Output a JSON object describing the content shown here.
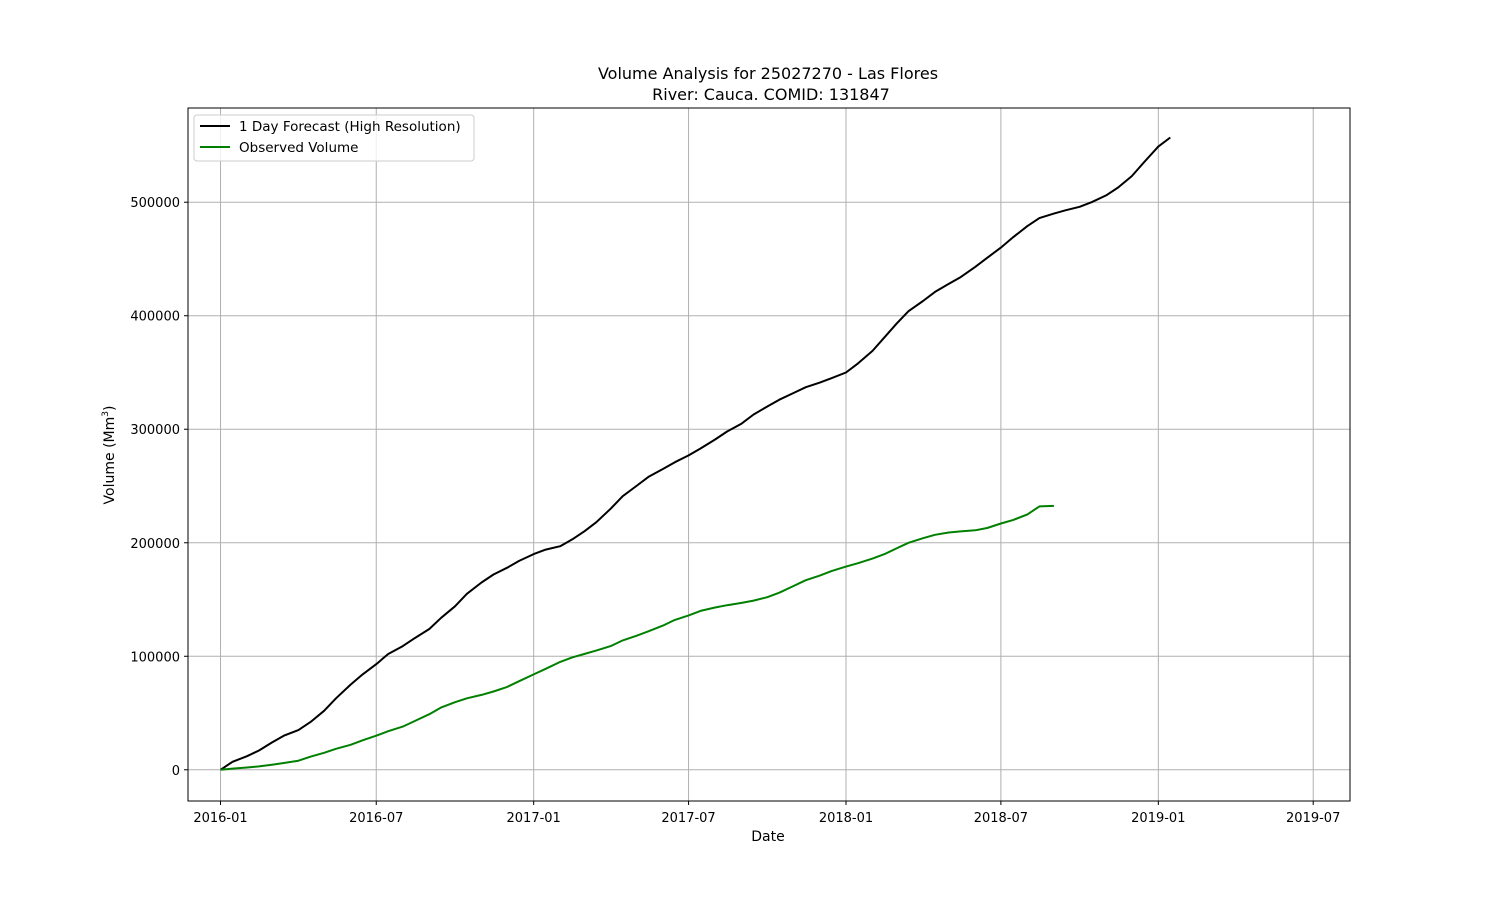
{
  "chart_data": {
    "type": "line",
    "title": "Volume Analysis for 25027270 - Las Flores",
    "subtitle": "River: Cauca. COMID: 131847",
    "xlabel": "Date",
    "ylabel": "Volume (Mm",
    "ylabel_sup": "3",
    "ylabel_suffix": ")",
    "xlim": [
      "2015-11-24",
      "2019-08-13"
    ],
    "ylim": [
      -27500,
      583000
    ],
    "x_ticks": [
      {
        "date": "2016-01-01",
        "label": "2016-01"
      },
      {
        "date": "2016-07-01",
        "label": "2016-07"
      },
      {
        "date": "2017-01-01",
        "label": "2017-01"
      },
      {
        "date": "2017-07-01",
        "label": "2017-07"
      },
      {
        "date": "2018-01-01",
        "label": "2018-01"
      },
      {
        "date": "2018-07-01",
        "label": "2018-07"
      },
      {
        "date": "2019-01-01",
        "label": "2019-01"
      },
      {
        "date": "2019-07-01",
        "label": "2019-07"
      }
    ],
    "y_ticks": [
      {
        "value": 0,
        "label": "0"
      },
      {
        "value": 100000,
        "label": "100000"
      },
      {
        "value": 200000,
        "label": "200000"
      },
      {
        "value": 300000,
        "label": "300000"
      },
      {
        "value": 400000,
        "label": "400000"
      },
      {
        "value": 500000,
        "label": "500000"
      }
    ],
    "grid": true,
    "legend_position": "top-left",
    "series": [
      {
        "name": "1 Day Forecast (High Resolution)",
        "color": "#000000",
        "points": [
          [
            "2016-01-01",
            0
          ],
          [
            "2016-01-15",
            7000
          ],
          [
            "2016-02-01",
            12000
          ],
          [
            "2016-02-15",
            17000
          ],
          [
            "2016-03-01",
            24000
          ],
          [
            "2016-03-15",
            30000
          ],
          [
            "2016-04-01",
            35000
          ],
          [
            "2016-04-15",
            42000
          ],
          [
            "2016-05-01",
            52000
          ],
          [
            "2016-05-15",
            63000
          ],
          [
            "2016-06-01",
            75000
          ],
          [
            "2016-06-15",
            84000
          ],
          [
            "2016-07-01",
            93000
          ],
          [
            "2016-07-15",
            102000
          ],
          [
            "2016-08-01",
            109000
          ],
          [
            "2016-08-15",
            116000
          ],
          [
            "2016-09-01",
            124000
          ],
          [
            "2016-09-15",
            134000
          ],
          [
            "2016-10-01",
            144000
          ],
          [
            "2016-10-15",
            155000
          ],
          [
            "2016-11-01",
            165000
          ],
          [
            "2016-11-15",
            172000
          ],
          [
            "2016-12-01",
            178000
          ],
          [
            "2016-12-15",
            184000
          ],
          [
            "2017-01-01",
            190000
          ],
          [
            "2017-01-15",
            194000
          ],
          [
            "2017-02-01",
            197000
          ],
          [
            "2017-02-15",
            203000
          ],
          [
            "2017-03-01",
            210000
          ],
          [
            "2017-03-15",
            218000
          ],
          [
            "2017-04-01",
            230000
          ],
          [
            "2017-04-15",
            241000
          ],
          [
            "2017-05-01",
            250000
          ],
          [
            "2017-05-15",
            258000
          ],
          [
            "2017-06-01",
            265000
          ],
          [
            "2017-06-15",
            271000
          ],
          [
            "2017-07-01",
            277000
          ],
          [
            "2017-07-15",
            283000
          ],
          [
            "2017-08-01",
            291000
          ],
          [
            "2017-08-15",
            298000
          ],
          [
            "2017-09-01",
            305000
          ],
          [
            "2017-09-15",
            313000
          ],
          [
            "2017-10-01",
            320000
          ],
          [
            "2017-10-15",
            326000
          ],
          [
            "2017-11-01",
            332000
          ],
          [
            "2017-11-15",
            337000
          ],
          [
            "2017-12-01",
            341000
          ],
          [
            "2017-12-15",
            345000
          ],
          [
            "2018-01-01",
            350000
          ],
          [
            "2018-01-15",
            358000
          ],
          [
            "2018-02-01",
            369000
          ],
          [
            "2018-02-15",
            381000
          ],
          [
            "2018-03-01",
            393000
          ],
          [
            "2018-03-15",
            404000
          ],
          [
            "2018-04-01",
            413000
          ],
          [
            "2018-04-15",
            421000
          ],
          [
            "2018-05-01",
            428000
          ],
          [
            "2018-05-15",
            434000
          ],
          [
            "2018-06-01",
            443000
          ],
          [
            "2018-06-15",
            451000
          ],
          [
            "2018-07-01",
            460000
          ],
          [
            "2018-07-15",
            469000
          ],
          [
            "2018-08-01",
            479000
          ],
          [
            "2018-08-15",
            486000
          ],
          [
            "2018-09-01",
            490000
          ],
          [
            "2018-09-15",
            493000
          ],
          [
            "2018-10-01",
            496000
          ],
          [
            "2018-10-15",
            500000
          ],
          [
            "2018-11-01",
            506000
          ],
          [
            "2018-11-15",
            513000
          ],
          [
            "2018-12-01",
            523000
          ],
          [
            "2018-12-15",
            535000
          ],
          [
            "2019-01-01",
            549000
          ],
          [
            "2019-01-15",
            557000
          ]
        ]
      },
      {
        "name": "Observed Volume",
        "color": "#008000",
        "points": [
          [
            "2016-01-01",
            0
          ],
          [
            "2016-01-15",
            1000
          ],
          [
            "2016-02-01",
            2000
          ],
          [
            "2016-02-15",
            3000
          ],
          [
            "2016-03-01",
            4500
          ],
          [
            "2016-03-15",
            6000
          ],
          [
            "2016-04-01",
            8000
          ],
          [
            "2016-04-15",
            11500
          ],
          [
            "2016-05-01",
            15000
          ],
          [
            "2016-05-15",
            18500
          ],
          [
            "2016-06-01",
            22000
          ],
          [
            "2016-06-15",
            26000
          ],
          [
            "2016-07-01",
            30000
          ],
          [
            "2016-07-15",
            34000
          ],
          [
            "2016-08-01",
            38000
          ],
          [
            "2016-08-15",
            43000
          ],
          [
            "2016-09-01",
            49000
          ],
          [
            "2016-09-15",
            55000
          ],
          [
            "2016-10-01",
            59500
          ],
          [
            "2016-10-15",
            63000
          ],
          [
            "2016-11-01",
            66000
          ],
          [
            "2016-11-15",
            69000
          ],
          [
            "2016-12-01",
            73000
          ],
          [
            "2016-12-15",
            78000
          ],
          [
            "2017-01-01",
            84000
          ],
          [
            "2017-01-15",
            89000
          ],
          [
            "2017-02-01",
            95000
          ],
          [
            "2017-02-15",
            99000
          ],
          [
            "2017-03-01",
            102000
          ],
          [
            "2017-03-15",
            105000
          ],
          [
            "2017-04-01",
            109000
          ],
          [
            "2017-04-15",
            114000
          ],
          [
            "2017-05-01",
            118000
          ],
          [
            "2017-05-15",
            122000
          ],
          [
            "2017-06-01",
            127000
          ],
          [
            "2017-06-15",
            132000
          ],
          [
            "2017-07-01",
            136000
          ],
          [
            "2017-07-15",
            140000
          ],
          [
            "2017-08-01",
            143000
          ],
          [
            "2017-08-15",
            145000
          ],
          [
            "2017-09-01",
            147000
          ],
          [
            "2017-09-15",
            149000
          ],
          [
            "2017-10-01",
            152000
          ],
          [
            "2017-10-15",
            156000
          ],
          [
            "2017-11-01",
            162000
          ],
          [
            "2017-11-15",
            167000
          ],
          [
            "2017-12-01",
            171000
          ],
          [
            "2017-12-15",
            175000
          ],
          [
            "2018-01-01",
            179000
          ],
          [
            "2018-01-15",
            182000
          ],
          [
            "2018-02-01",
            186000
          ],
          [
            "2018-02-15",
            190000
          ],
          [
            "2018-03-01",
            195000
          ],
          [
            "2018-03-15",
            200000
          ],
          [
            "2018-04-01",
            204000
          ],
          [
            "2018-04-15",
            207000
          ],
          [
            "2018-05-01",
            209000
          ],
          [
            "2018-05-15",
            210000
          ],
          [
            "2018-06-01",
            211000
          ],
          [
            "2018-06-15",
            213000
          ],
          [
            "2018-07-01",
            217000
          ],
          [
            "2018-07-15",
            220000
          ],
          [
            "2018-08-01",
            225000
          ],
          [
            "2018-08-15",
            232000
          ],
          [
            "2018-09-01",
            232500
          ]
        ]
      }
    ]
  }
}
